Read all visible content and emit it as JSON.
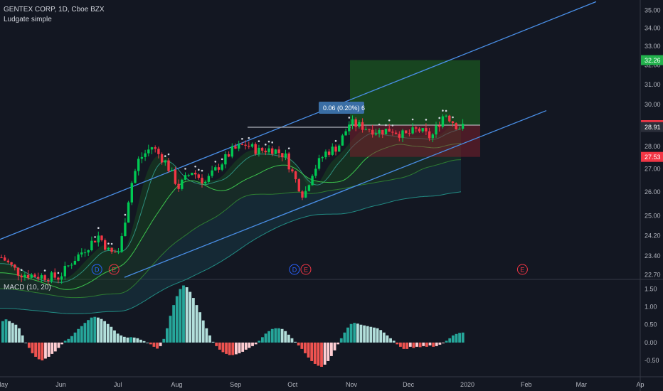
{
  "header": {
    "symbol_line": "GENTEX CORP, 1D, Cboe BZX",
    "study_line": "Ludgate simple",
    "macd_label": "MACD (10, 20)"
  },
  "trade_tooltip": "0.06 (0.20%) 6",
  "colors": {
    "background": "#131722",
    "up": "#26a69a",
    "bull_candle": "#00c853",
    "bear_candle": "#f23645",
    "channel": "#4a8fe7",
    "macd_pos_strong": "#26a69a",
    "macd_pos_weak": "#b2dfdb",
    "macd_neg_strong": "#ef5350",
    "macd_neg_weak": "#ffcdd2",
    "target_zone": "#0e4d1e",
    "stop_zone": "#5a1a22"
  },
  "price_labels": [
    {
      "value": "32.26",
      "color": "#22b14c"
    },
    {
      "value": "29.00",
      "color": "#f23645"
    },
    {
      "value": "28.91",
      "color": "#2a2e39"
    },
    {
      "value": "27.53",
      "color": "#f23645"
    }
  ],
  "event_markers": [
    {
      "date": "2019-06-20",
      "text": "D",
      "color": "#2962ff"
    },
    {
      "date": "2019-06-29",
      "text": "E",
      "color": "#f23645"
    },
    {
      "date": "2019-10-02",
      "text": "D",
      "color": "#2962ff"
    },
    {
      "date": "2019-10-08",
      "text": "E",
      "color": "#f23645"
    },
    {
      "date": "2020-01-30",
      "text": "E",
      "color": "#f23645"
    }
  ],
  "chart_data": [
    {
      "type": "candlestick",
      "title": "GENTEX CORP, 1D, Cboe BZX",
      "x_ticks": [
        "May",
        "Jun",
        "Jul",
        "Aug",
        "Sep",
        "Oct",
        "Nov",
        "Dec",
        "2020",
        "Feb",
        "Mar",
        "Ap"
      ],
      "y_ticks": [
        "35.00",
        "34.00",
        "33.00",
        "32.00",
        "31.00",
        "30.00",
        "29.00",
        "28.00",
        "27.00",
        "26.00",
        "25.00",
        "24.20",
        "23.40",
        "22.70"
      ],
      "y_scale": "log",
      "y_range": [
        22.55,
        35.6
      ],
      "x_range": [
        "2019-04-30",
        "2020-04-01"
      ],
      "series": [
        {
          "name": "close",
          "points": [
            [
              "2019-05-01",
              23.35
            ],
            [
              "2019-05-10",
              22.75
            ],
            [
              "2019-05-20",
              22.65
            ],
            [
              "2019-05-31",
              22.6
            ],
            [
              "2019-06-07",
              23.2
            ],
            [
              "2019-06-14",
              23.7
            ],
            [
              "2019-06-21",
              24.2
            ],
            [
              "2019-06-27",
              23.5
            ],
            [
              "2019-07-02",
              23.6
            ],
            [
              "2019-07-08",
              26.3
            ],
            [
              "2019-07-12",
              27.4
            ],
            [
              "2019-07-19",
              28.0
            ],
            [
              "2019-07-26",
              27.3
            ],
            [
              "2019-08-02",
              26.2
            ],
            [
              "2019-08-09",
              26.9
            ],
            [
              "2019-08-16",
              26.4
            ],
            [
              "2019-08-23",
              27.1
            ],
            [
              "2019-08-30",
              27.8
            ],
            [
              "2019-09-06",
              28.1
            ],
            [
              "2019-09-13",
              27.8
            ],
            [
              "2019-09-20",
              27.9
            ],
            [
              "2019-09-27",
              27.6
            ],
            [
              "2019-10-02",
              26.6
            ],
            [
              "2019-10-07",
              25.8
            ],
            [
              "2019-10-11",
              26.8
            ],
            [
              "2019-10-18",
              27.7
            ],
            [
              "2019-10-25",
              28.0
            ],
            [
              "2019-10-31",
              29.1
            ],
            [
              "2019-11-08",
              28.9
            ],
            [
              "2019-11-15",
              28.7
            ],
            [
              "2019-11-22",
              28.8
            ],
            [
              "2019-11-29",
              28.5
            ],
            [
              "2019-12-06",
              28.8
            ],
            [
              "2019-12-13",
              28.4
            ],
            [
              "2019-12-20",
              29.6
            ],
            [
              "2019-12-27",
              28.91
            ]
          ]
        },
        {
          "name": "target",
          "value": 32.26
        },
        {
          "name": "entry",
          "value": 29.0
        },
        {
          "name": "stop",
          "value": 27.53
        }
      ]
    },
    {
      "type": "bar",
      "title": "MACD (10, 20)",
      "y_ticks": [
        "1.50",
        "1.00",
        "0.50",
        "0.00",
        "-0.50"
      ],
      "y_range": [
        -0.9,
        1.75
      ],
      "histogram": [
        0.6,
        0.65,
        0.6,
        0.55,
        0.5,
        0.4,
        0.2,
        0.0,
        -0.15,
        -0.3,
        -0.4,
        -0.47,
        -0.5,
        -0.45,
        -0.4,
        -0.32,
        -0.25,
        -0.15,
        -0.05,
        0.05,
        0.1,
        0.18,
        0.28,
        0.38,
        0.46,
        0.55,
        0.63,
        0.7,
        0.72,
        0.7,
        0.66,
        0.6,
        0.52,
        0.44,
        0.34,
        0.25,
        0.2,
        0.16,
        0.14,
        0.15,
        0.14,
        0.12,
        0.08,
        0.04,
        0.0,
        -0.05,
        -0.12,
        -0.17,
        -0.1,
        0.1,
        0.4,
        0.75,
        1.05,
        1.3,
        1.5,
        1.6,
        1.55,
        1.42,
        1.25,
        1.05,
        0.85,
        0.62,
        0.4,
        0.2,
        0.02,
        -0.1,
        -0.2,
        -0.27,
        -0.32,
        -0.35,
        -0.35,
        -0.33,
        -0.3,
        -0.26,
        -0.2,
        -0.15,
        -0.1,
        -0.05,
        0.05,
        0.15,
        0.25,
        0.32,
        0.38,
        0.4,
        0.4,
        0.38,
        0.32,
        0.22,
        0.12,
        0.02,
        -0.08,
        -0.18,
        -0.3,
        -0.42,
        -0.52,
        -0.6,
        -0.65,
        -0.68,
        -0.62,
        -0.52,
        -0.38,
        -0.22,
        -0.05,
        0.12,
        0.28,
        0.42,
        0.52,
        0.55,
        0.53,
        0.5,
        0.48,
        0.46,
        0.44,
        0.42,
        0.4,
        0.35,
        0.28,
        0.2,
        0.12,
        0.05,
        -0.05,
        -0.12,
        -0.18,
        -0.18,
        -0.12,
        -0.15,
        -0.12,
        -0.13,
        -0.1,
        -0.12,
        -0.08,
        -0.12,
        -0.1,
        -0.06,
        -0.02,
        0.05,
        0.12,
        0.2,
        0.24,
        0.27,
        0.28
      ]
    }
  ]
}
